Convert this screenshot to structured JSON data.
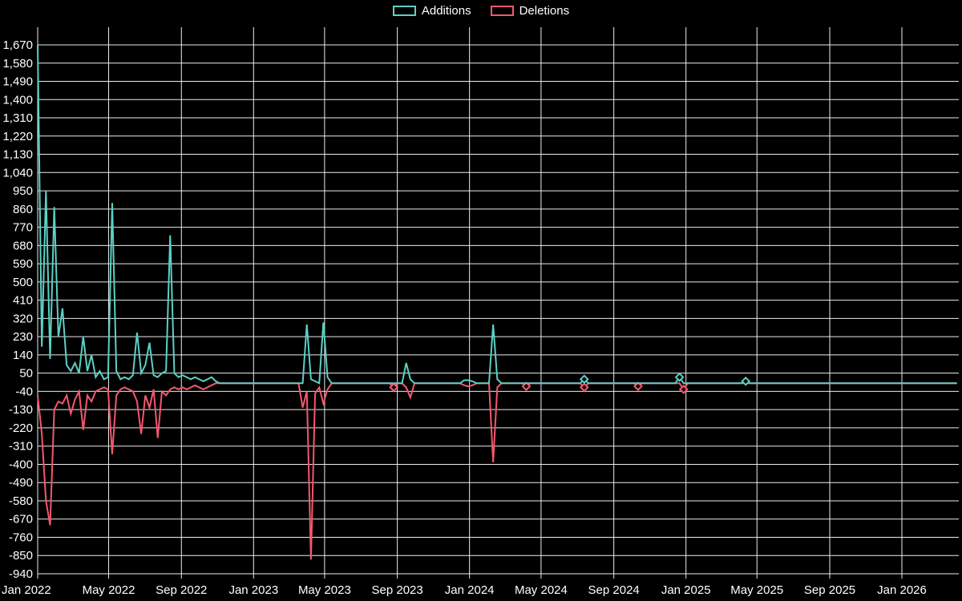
{
  "page": {
    "background": "#000000"
  },
  "legend": {
    "items": [
      {
        "label": "Additions",
        "color": "#5bd1c5"
      },
      {
        "label": "Deletions",
        "color": "#f4586e"
      }
    ]
  },
  "chart_data": {
    "type": "line",
    "title": "",
    "x_unit": "weeks since 2022-01-01",
    "grid": true,
    "legend_position": "top-center",
    "background": "#000000",
    "x_ticks": [
      {
        "label": "Jan 2022",
        "week": 0
      },
      {
        "label": "May 2022",
        "week": 17.14
      },
      {
        "label": "Sep 2022",
        "week": 34.71
      },
      {
        "label": "Jan 2023",
        "week": 52.14
      },
      {
        "label": "May 2023",
        "week": 69.29
      },
      {
        "label": "Sep 2023",
        "week": 86.86
      },
      {
        "label": "Jan 2024",
        "week": 104.29
      },
      {
        "label": "May 2024",
        "week": 121.57
      },
      {
        "label": "Sep 2024",
        "week": 139.14
      },
      {
        "label": "Jan 2025",
        "week": 156.57
      },
      {
        "label": "May 2025",
        "week": 173.71
      },
      {
        "label": "Sep 2025",
        "week": 191.29
      },
      {
        "label": "Jan 2026",
        "week": 208.71
      }
    ],
    "y_tick_values": [
      1670,
      1580,
      1490,
      1400,
      1310,
      1220,
      1130,
      1040,
      950,
      860,
      770,
      680,
      590,
      500,
      410,
      320,
      230,
      140,
      50,
      -40,
      -130,
      -220,
      -310,
      -400,
      -490,
      -580,
      -670,
      -760,
      -850,
      -940
    ],
    "y_tick_labels": [
      "1,670",
      "1,580",
      "1,490",
      "1,400",
      "1,310",
      "1,220",
      "1,130",
      "1,040",
      "950",
      "860",
      "770",
      "680",
      "590",
      "500",
      "410",
      "320",
      "230",
      "140",
      "50",
      "-40",
      "-130",
      "-220",
      "-310",
      "-400",
      "-490",
      "-580",
      "-670",
      "-760",
      "-850",
      "-940"
    ],
    "y_range": [
      -940,
      1670
    ],
    "series": [
      {
        "name": "Additions",
        "color": "#5bd1c5",
        "values": [
          1670,
          180,
          950,
          120,
          870,
          230,
          370,
          90,
          60,
          100,
          50,
          230,
          60,
          140,
          30,
          60,
          20,
          30,
          890,
          60,
          20,
          30,
          20,
          40,
          250,
          50,
          90,
          200,
          40,
          30,
          50,
          60,
          730,
          50,
          30,
          40,
          30,
          20,
          30,
          20,
          10,
          20,
          30,
          10,
          0,
          0,
          0,
          0,
          0,
          0,
          0,
          0,
          0,
          0,
          0,
          0,
          0,
          0,
          0,
          0,
          0,
          0,
          0,
          0,
          0,
          290,
          20,
          10,
          0,
          300,
          30,
          0,
          0,
          0,
          0,
          0,
          0,
          0,
          0,
          0,
          0,
          0,
          0,
          0,
          0,
          0,
          0,
          0,
          0,
          100,
          20,
          0,
          0,
          0,
          0,
          0,
          0,
          0,
          0,
          0,
          0,
          0,
          0,
          15,
          15,
          10,
          0,
          0,
          0,
          0,
          290,
          20,
          0,
          0,
          0,
          0,
          0,
          0,
          0,
          0,
          0,
          0,
          0,
          0,
          0,
          0,
          0,
          0,
          0,
          0,
          0,
          0,
          20,
          0,
          0,
          0,
          0,
          0,
          0,
          0,
          0,
          0,
          0,
          0,
          0,
          0,
          0,
          0,
          0,
          0,
          0,
          0,
          0,
          0,
          0,
          30,
          0,
          0,
          0,
          0,
          0,
          0,
          0,
          0,
          0,
          0,
          0,
          0,
          0,
          0,
          0,
          10,
          0,
          0,
          0,
          0,
          0,
          0,
          0,
          0,
          0,
          0,
          0,
          0,
          0,
          0,
          0,
          0,
          0,
          0,
          0,
          0,
          0,
          0,
          0,
          0,
          0,
          0,
          0,
          0,
          0,
          0,
          0,
          0,
          0,
          0,
          0,
          0,
          0,
          0,
          0,
          0,
          0,
          0,
          0,
          0,
          0,
          0,
          0,
          0,
          0,
          0,
          0
        ]
      },
      {
        "name": "Deletions",
        "color": "#f4586e",
        "values": [
          -60,
          -250,
          -580,
          -700,
          -130,
          -90,
          -100,
          -60,
          -150,
          -80,
          -40,
          -230,
          -60,
          -90,
          -40,
          -30,
          -20,
          -30,
          -350,
          -60,
          -30,
          -20,
          -30,
          -40,
          -90,
          -250,
          -60,
          -120,
          -30,
          -270,
          -40,
          -60,
          -30,
          -20,
          -30,
          -20,
          -30,
          -20,
          -10,
          -20,
          -30,
          -20,
          -10,
          0,
          0,
          0,
          0,
          0,
          0,
          0,
          0,
          0,
          0,
          0,
          0,
          0,
          0,
          0,
          0,
          0,
          0,
          0,
          0,
          0,
          -120,
          -40,
          -870,
          -50,
          -20,
          -100,
          -30,
          0,
          0,
          0,
          0,
          0,
          0,
          0,
          0,
          0,
          0,
          0,
          0,
          0,
          0,
          0,
          -20,
          0,
          0,
          -20,
          -70,
          0,
          0,
          0,
          0,
          0,
          0,
          0,
          0,
          0,
          0,
          0,
          0,
          -10,
          -15,
          -10,
          0,
          0,
          0,
          0,
          -390,
          -20,
          0,
          0,
          0,
          0,
          0,
          0,
          -15,
          0,
          0,
          0,
          0,
          0,
          0,
          0,
          0,
          0,
          0,
          0,
          0,
          0,
          -20,
          0,
          0,
          0,
          0,
          0,
          0,
          0,
          0,
          0,
          0,
          0,
          0,
          -15,
          0,
          0,
          0,
          0,
          0,
          0,
          0,
          0,
          0,
          0,
          -30,
          0,
          0,
          0,
          0,
          0,
          0,
          0,
          0,
          0,
          0,
          0,
          0,
          0,
          0,
          0,
          0,
          0,
          0,
          0,
          0,
          0,
          0,
          0,
          0,
          0,
          0,
          0,
          0,
          0,
          0,
          0,
          0,
          0,
          0,
          0,
          0,
          0,
          0,
          0,
          0,
          0,
          0,
          0,
          0,
          0,
          0,
          0,
          0,
          0,
          0,
          0,
          0,
          0,
          0,
          0,
          0,
          0,
          0,
          0,
          0,
          0,
          0,
          0,
          0,
          0,
          0
        ]
      }
    ]
  }
}
